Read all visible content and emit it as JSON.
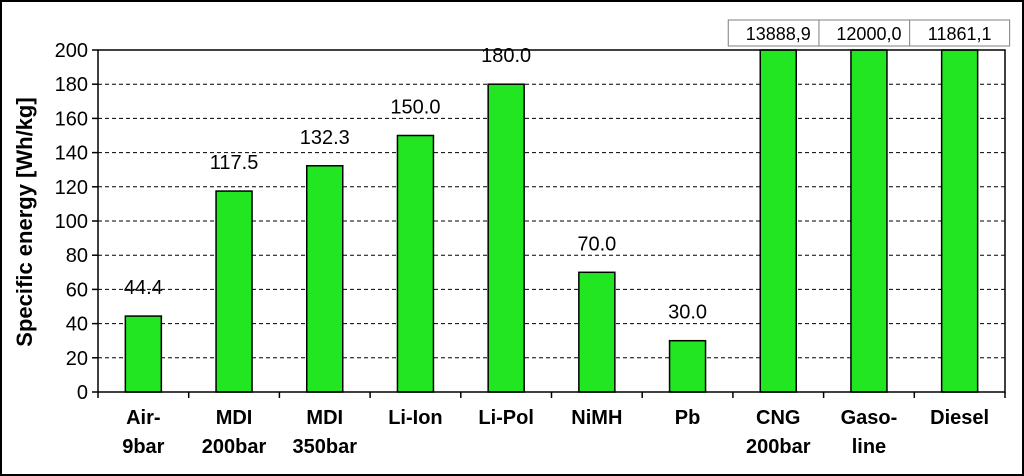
{
  "chart_data": {
    "type": "bar",
    "ylabel": "Specific energy [Wh/kg]",
    "xlabel": "",
    "ylim": [
      0,
      200
    ],
    "yticks": [
      0,
      20,
      40,
      60,
      80,
      100,
      120,
      140,
      160,
      180,
      200
    ],
    "grid": "horizontal-dashed",
    "bar_color": "#22e622",
    "categories": [
      [
        "Air-",
        "9bar"
      ],
      [
        "MDI",
        "200bar"
      ],
      [
        "MDI",
        "350bar"
      ],
      [
        "Li-Ion"
      ],
      [
        "Li-Pol"
      ],
      [
        "NiMH"
      ],
      [
        "Pb"
      ],
      [
        "CNG",
        "200bar"
      ],
      [
        "Gaso-",
        "line"
      ],
      [
        "Diesel"
      ]
    ],
    "values": [
      44.4,
      117.5,
      132.3,
      150.0,
      180.0,
      70.0,
      30.0,
      13888.9,
      12000.0,
      11861.1
    ],
    "value_labels": [
      "44.4",
      "117.5",
      "132.3",
      "150.0",
      "180.0",
      "70.0",
      "30.0",
      "13888,9",
      "12000,0",
      "11861,1"
    ]
  }
}
